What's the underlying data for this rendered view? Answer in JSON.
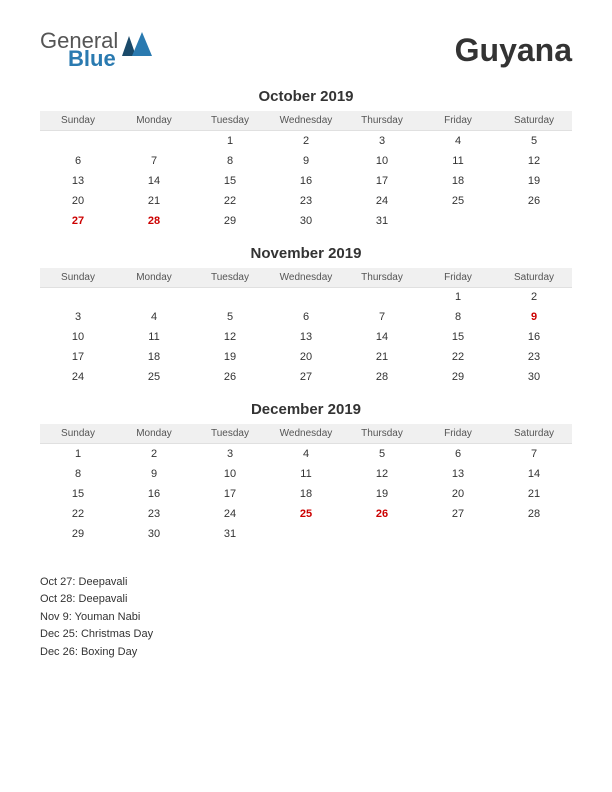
{
  "logo": {
    "line1": "General",
    "line2": "Blue"
  },
  "country": "Guyana",
  "day_names": [
    "Sunday",
    "Monday",
    "Tuesday",
    "Wednesday",
    "Thursday",
    "Friday",
    "Saturday"
  ],
  "colors": {
    "holiday": "#cc0000",
    "header_bg": "#f0f0f0",
    "text": "#333333",
    "logo_blue": "#2a7ab0",
    "logo_gray": "#555555",
    "tri_blue": "#2a7ab0",
    "tri_dark": "#1a4a6a"
  },
  "months": [
    {
      "title": "October 2019",
      "weeks": [
        [
          "",
          "",
          "1",
          "2",
          "3",
          "4",
          "5"
        ],
        [
          "6",
          "7",
          "8",
          "9",
          "10",
          "11",
          "12"
        ],
        [
          "13",
          "14",
          "15",
          "16",
          "17",
          "18",
          "19"
        ],
        [
          "20",
          "21",
          "22",
          "23",
          "24",
          "25",
          "26"
        ],
        [
          "27",
          "28",
          "29",
          "30",
          "31",
          "",
          ""
        ]
      ],
      "holidays": [
        "27",
        "28"
      ]
    },
    {
      "title": "November 2019",
      "weeks": [
        [
          "",
          "",
          "",
          "",
          "",
          "1",
          "2"
        ],
        [
          "3",
          "4",
          "5",
          "6",
          "7",
          "8",
          "9"
        ],
        [
          "10",
          "11",
          "12",
          "13",
          "14",
          "15",
          "16"
        ],
        [
          "17",
          "18",
          "19",
          "20",
          "21",
          "22",
          "23"
        ],
        [
          "24",
          "25",
          "26",
          "27",
          "28",
          "29",
          "30"
        ]
      ],
      "holidays": [
        "9"
      ]
    },
    {
      "title": "December 2019",
      "weeks": [
        [
          "1",
          "2",
          "3",
          "4",
          "5",
          "6",
          "7"
        ],
        [
          "8",
          "9",
          "10",
          "11",
          "12",
          "13",
          "14"
        ],
        [
          "15",
          "16",
          "17",
          "18",
          "19",
          "20",
          "21"
        ],
        [
          "22",
          "23",
          "24",
          "25",
          "26",
          "27",
          "28"
        ],
        [
          "29",
          "30",
          "31",
          "",
          "",
          "",
          ""
        ]
      ],
      "holidays": [
        "25",
        "26"
      ]
    }
  ],
  "holiday_list": [
    "Oct 27: Deepavali",
    "Oct 28: Deepavali",
    "Nov 9: Youman Nabi",
    "Dec 25: Christmas Day",
    "Dec 26: Boxing Day"
  ]
}
